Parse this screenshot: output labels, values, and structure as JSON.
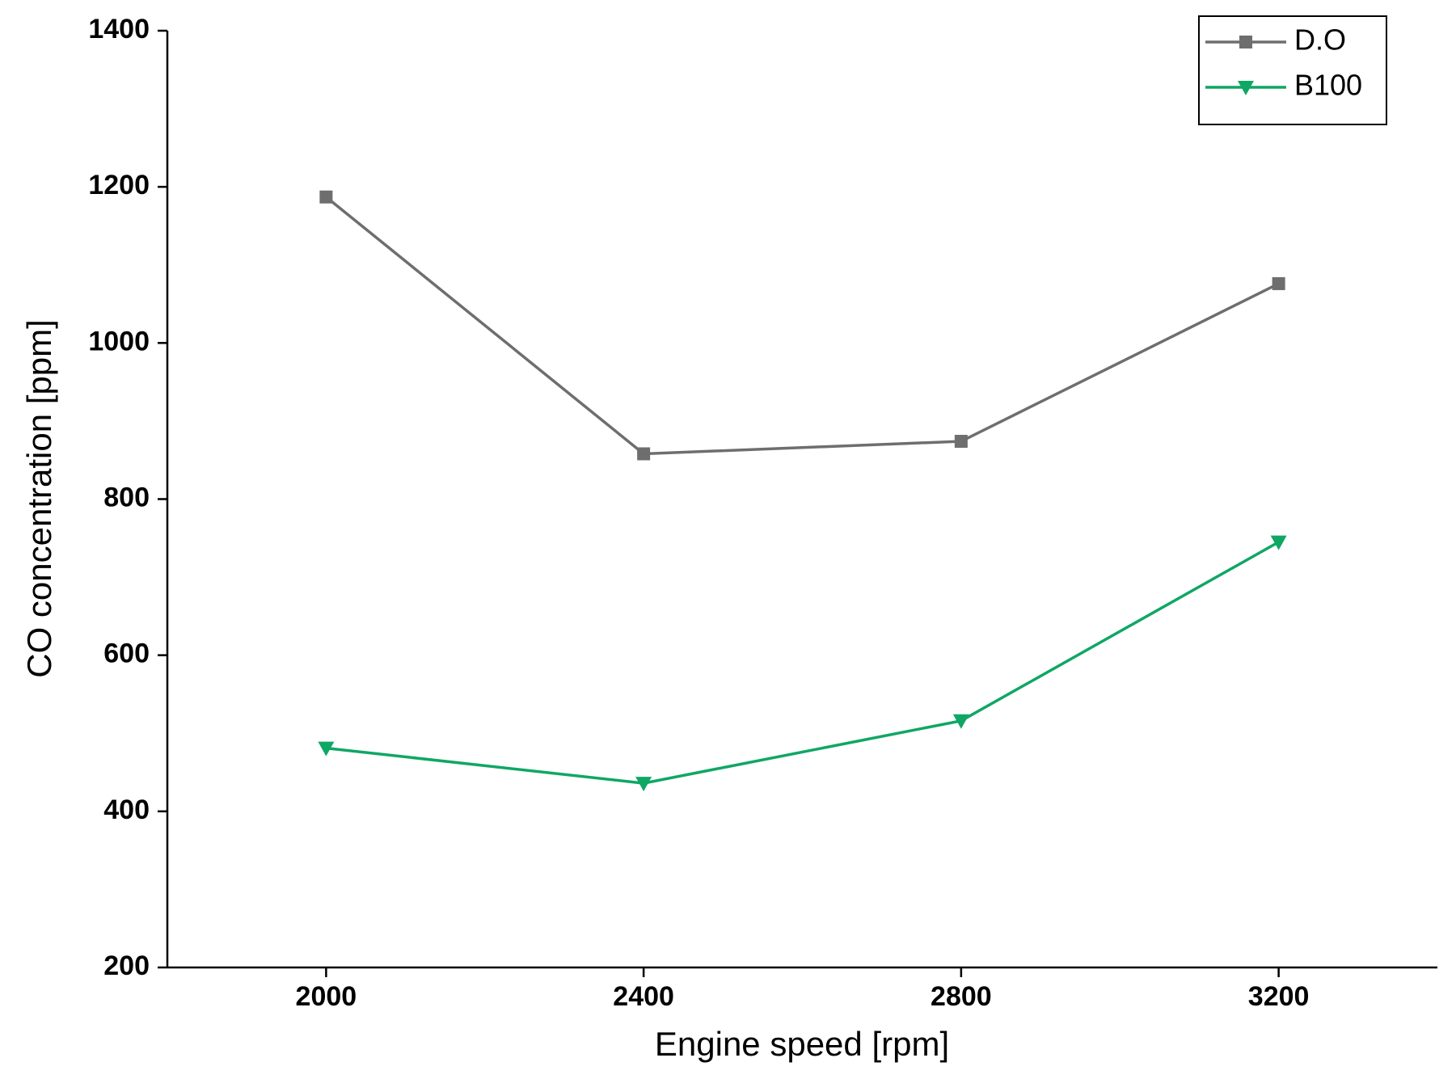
{
  "chart_data": {
    "type": "line",
    "x_label": "Engine speed [rpm]",
    "y_label": "CO concentration [ppm]",
    "x": [
      2000,
      2400,
      2800,
      3200
    ],
    "xlim": [
      1800,
      3400
    ],
    "xticks": [
      2000,
      2400,
      2800,
      3200
    ],
    "ylim": [
      200,
      1400
    ],
    "yticks": [
      200,
      400,
      600,
      800,
      1000,
      1200,
      1400
    ],
    "legend": "upper right",
    "series": [
      {
        "name": "D.O",
        "color": "#6e6e6e",
        "marker": "square",
        "values": [
          1187,
          858,
          874,
          1076
        ]
      },
      {
        "name": "B100",
        "color": "#0fa764",
        "marker": "triangle-down",
        "values": [
          481,
          436,
          516,
          745
        ]
      }
    ]
  }
}
